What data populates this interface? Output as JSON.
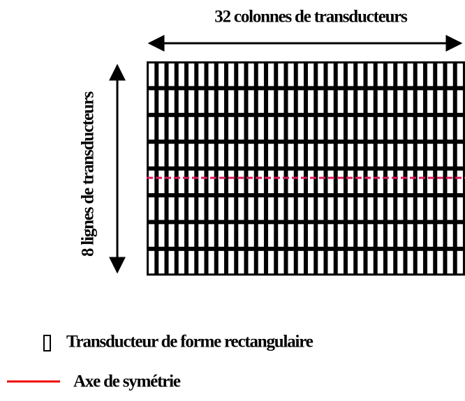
{
  "labels": {
    "columns": "32 colonnes de transducteurs",
    "rows": "8 lignes de transducteurs"
  },
  "legend": {
    "items": [
      {
        "label": "Transducteur de forme rectangulaire"
      },
      {
        "label": "Axe de symétrie"
      }
    ]
  }
}
